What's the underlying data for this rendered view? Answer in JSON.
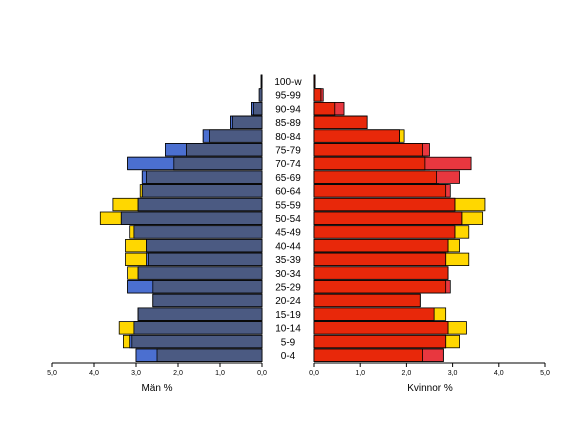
{
  "chart_data": {
    "type": "bar",
    "subtype": "population-pyramid",
    "categories": [
      "0-4",
      "5-9",
      "10-14",
      "15-19",
      "20-24",
      "25-29",
      "30-34",
      "35-39",
      "40-44",
      "45-49",
      "50-54",
      "55-59",
      "60-64",
      "65-69",
      "70-74",
      "75-79",
      "80-84",
      "85-89",
      "90-94",
      "95-99",
      "100-w"
    ],
    "left_panel": {
      "xlabel": "Män %",
      "xlim": [
        0,
        5
      ],
      "ticks": [
        "5,0",
        "4,0",
        "3,0",
        "2,0",
        "1,0",
        "0,0"
      ],
      "series": [
        {
          "values": [
            2.5,
            3.1,
            3.05,
            2.95,
            2.6,
            2.6,
            2.95,
            2.7,
            2.75,
            3.05,
            3.35,
            2.95,
            2.85,
            2.75,
            2.1,
            1.8,
            1.25,
            0.7,
            0.2,
            0.07,
            0.02
          ],
          "color": "#4b5a82"
        },
        {
          "values": [
            3.0,
            3.3,
            3.4,
            2.95,
            2.6,
            3.2,
            3.2,
            3.25,
            3.25,
            3.15,
            3.85,
            3.55,
            2.9,
            2.85,
            3.2,
            2.3,
            1.4,
            0.75,
            0.25,
            0.05,
            0.02
          ],
          "color": "#ffd700"
        },
        {
          "values": [
            3.0,
            3.15,
            3.05,
            2.95,
            2.6,
            3.2,
            2.95,
            2.75,
            2.75,
            3.05,
            3.35,
            2.95,
            2.85,
            2.85,
            3.2,
            2.3,
            1.4,
            0.75,
            0.25,
            0.05,
            0.02
          ],
          "color": "#4b6fd0"
        }
      ]
    },
    "right_panel": {
      "xlabel": "Kvinnor %",
      "xlim": [
        0,
        5
      ],
      "ticks": [
        "0,0",
        "1,0",
        "2,0",
        "3,0",
        "4,0",
        "5,0"
      ],
      "series": [
        {
          "values": [
            2.35,
            2.85,
            2.9,
            2.6,
            2.3,
            2.85,
            2.9,
            2.85,
            2.9,
            3.05,
            3.2,
            3.05,
            2.85,
            2.65,
            2.4,
            2.35,
            1.85,
            1.15,
            0.45,
            0.15,
            0.02
          ],
          "color": "#e8280a"
        },
        {
          "values": [
            2.8,
            3.15,
            3.3,
            2.85,
            2.3,
            2.85,
            2.9,
            3.35,
            3.15,
            3.35,
            3.65,
            3.7,
            2.9,
            2.7,
            2.5,
            2.45,
            1.95,
            1.15,
            0.45,
            0.15,
            0.02
          ],
          "color": "#ffd700"
        },
        {
          "values": [
            2.8,
            2.85,
            2.9,
            2.6,
            2.3,
            2.95,
            2.9,
            2.85,
            2.9,
            3.05,
            3.2,
            3.05,
            2.95,
            3.15,
            3.4,
            2.5,
            1.85,
            1.15,
            0.65,
            0.2,
            0.02
          ],
          "color": "#e8373f"
        }
      ]
    },
    "age_label_column": "center"
  }
}
